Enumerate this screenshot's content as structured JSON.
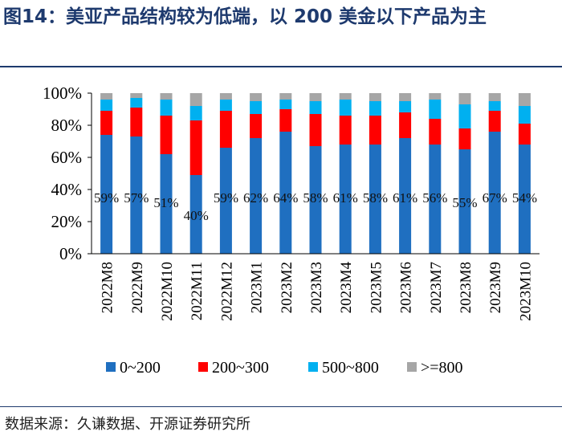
{
  "header": {
    "title": "图14：美亚产品结构较为低端，以 200 美金以下产品为主"
  },
  "footer": {
    "source": "数据来源：久谦数据、开源证券研究所"
  },
  "chart_data": {
    "type": "bar",
    "stacked": true,
    "title": "美亚产品结构较为低端，以 200 美金以下产品为主",
    "categories": [
      "2022M8",
      "2022M9",
      "2022M10",
      "2022M11",
      "2022M12",
      "2023M1",
      "2023M2",
      "2023M3",
      "2023M4",
      "2023M5",
      "2023M6",
      "2023M7",
      "2023M8",
      "2023M9",
      "2023M10"
    ],
    "series": [
      {
        "name": "0~200",
        "color": "#1f6fc0",
        "values": [
          74,
          73,
          62,
          49,
          66,
          72,
          76,
          67,
          68,
          68,
          72,
          68,
          65,
          76,
          68
        ]
      },
      {
        "name": "200~300",
        "color": "#ff0000",
        "values": [
          15,
          18,
          24,
          34,
          23,
          15,
          14,
          20,
          18,
          18,
          16,
          16,
          13,
          13,
          13
        ]
      },
      {
        "name": "500~800",
        "color": "#00b0f0",
        "values": [
          7,
          6,
          10,
          9,
          7,
          8,
          6,
          8,
          10,
          9,
          7,
          12,
          15,
          6,
          11
        ]
      },
      {
        "name": ">=800",
        "color": "#a6a6a6",
        "values": [
          4,
          3,
          4,
          8,
          4,
          5,
          4,
          5,
          4,
          5,
          5,
          4,
          7,
          5,
          8
        ]
      }
    ],
    "data_labels": [
      "59%",
      "57%",
      "51%",
      "40%",
      "59%",
      "62%",
      "64%",
      "58%",
      "61%",
      "58%",
      "61%",
      "56%",
      "55%",
      "67%",
      "54%"
    ],
    "yticks": [
      "0%",
      "20%",
      "40%",
      "60%",
      "80%",
      "100%"
    ],
    "ylim": [
      0,
      100
    ],
    "xlabel": "",
    "ylabel": "",
    "legend_position": "bottom"
  }
}
